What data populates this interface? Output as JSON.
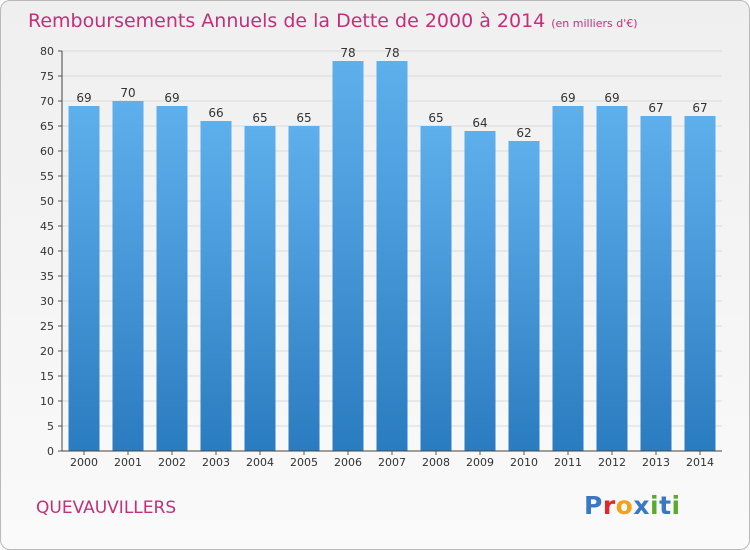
{
  "footer": {
    "municipality": "QUEVAUVILLERS"
  },
  "logo": {
    "text": "Proxiti",
    "letters": [
      {
        "char": "P",
        "color": "#3a78c4"
      },
      {
        "char": "r",
        "color": "#e3272b"
      },
      {
        "char": "o",
        "color": "#f2a31b"
      },
      {
        "char": "x",
        "color": "#3a78c4"
      },
      {
        "char": "i",
        "color": "#5aaa2e"
      },
      {
        "char": "t",
        "color": "#3a78c4"
      },
      {
        "char": "i",
        "color": "#5aaa2e"
      }
    ]
  },
  "colors": {
    "title": "#c2307a",
    "bar_top": "#5eb0ec",
    "bar_bottom": "#2a7cc0",
    "grid": "#dadada"
  },
  "chart_data": {
    "type": "bar",
    "title": "Remboursements Annuels de la Dette de 2000 à 2014",
    "subtitle": "(en milliers d'€)",
    "xlabel": "",
    "ylabel": "",
    "categories": [
      "2000",
      "2001",
      "2002",
      "2003",
      "2004",
      "2005",
      "2006",
      "2007",
      "2008",
      "2009",
      "2010",
      "2011",
      "2012",
      "2013",
      "2014"
    ],
    "values": [
      69,
      70,
      69,
      66,
      65,
      65,
      78,
      78,
      65,
      64,
      62,
      69,
      69,
      67,
      67
    ],
    "ylim": [
      0,
      80
    ],
    "yticks": [
      0,
      5,
      10,
      15,
      20,
      25,
      30,
      35,
      40,
      45,
      50,
      55,
      60,
      65,
      70,
      75,
      80
    ],
    "grid": true,
    "legend": "none"
  }
}
